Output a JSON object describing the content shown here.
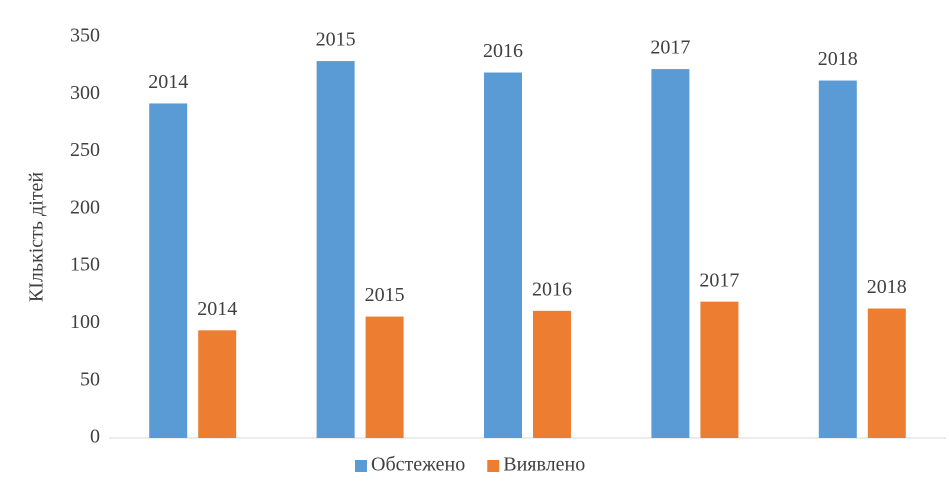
{
  "chart_data": {
    "type": "bar",
    "y_label": "КIлькість дітей",
    "categories": [
      "2014",
      "2015",
      "2016",
      "2017",
      "2018"
    ],
    "series": [
      {
        "name": "Обстежено",
        "color": "#5b9bd5",
        "values": [
          292,
          329,
          319,
          322,
          312
        ]
      },
      {
        "name": "Виявлено",
        "color": "#ed7d31",
        "values": [
          94,
          106,
          111,
          119,
          113
        ]
      }
    ],
    "ylim": [
      0,
      350
    ],
    "yticks": [
      0,
      50,
      100,
      150,
      200,
      250,
      300,
      350
    ],
    "grid": false,
    "legend": "bottom"
  }
}
